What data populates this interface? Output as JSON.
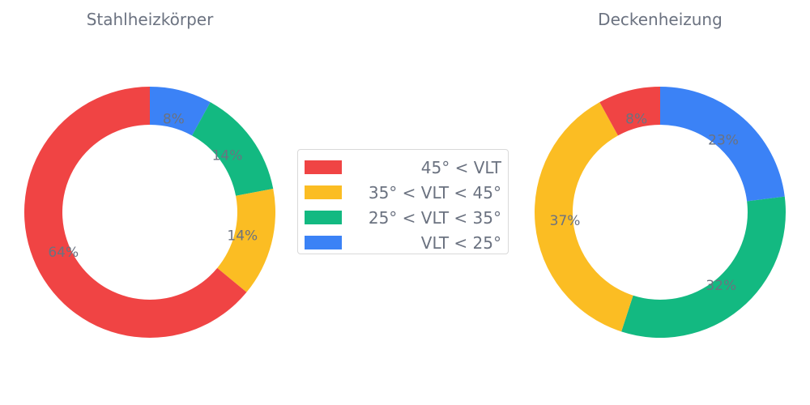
{
  "chart_data": [
    {
      "type": "pie",
      "variant": "donut",
      "title": "Stahlheizkörper",
      "slices": [
        {
          "category": "VLT < 25°",
          "value": 8,
          "label": "8%"
        },
        {
          "category": "25° < VLT < 35°",
          "value": 14,
          "label": "14%"
        },
        {
          "category": "35° < VLT < 45°",
          "value": 14,
          "label": "14%"
        },
        {
          "category": "45° < VLT",
          "value": 64,
          "label": "64%"
        }
      ]
    },
    {
      "type": "pie",
      "variant": "donut",
      "title": "Deckenheizung",
      "slices": [
        {
          "category": "VLT < 25°",
          "value": 23,
          "label": "23%"
        },
        {
          "category": "25° < VLT < 35°",
          "value": 32,
          "label": "32%"
        },
        {
          "category": "35° < VLT < 45°",
          "value": 37,
          "label": "37%"
        },
        {
          "category": "45° < VLT",
          "value": 8,
          "label": "8%"
        }
      ]
    }
  ],
  "legend": {
    "position": "center",
    "items": [
      {
        "label": "45° < VLT",
        "color": "#f04444"
      },
      {
        "label": "35° < VLT < 45°",
        "color": "#fbbd23"
      },
      {
        "label": "25° < VLT < 35°",
        "color": "#13b981"
      },
      {
        "label": "VLT < 25°",
        "color": "#3b82f6"
      }
    ]
  }
}
